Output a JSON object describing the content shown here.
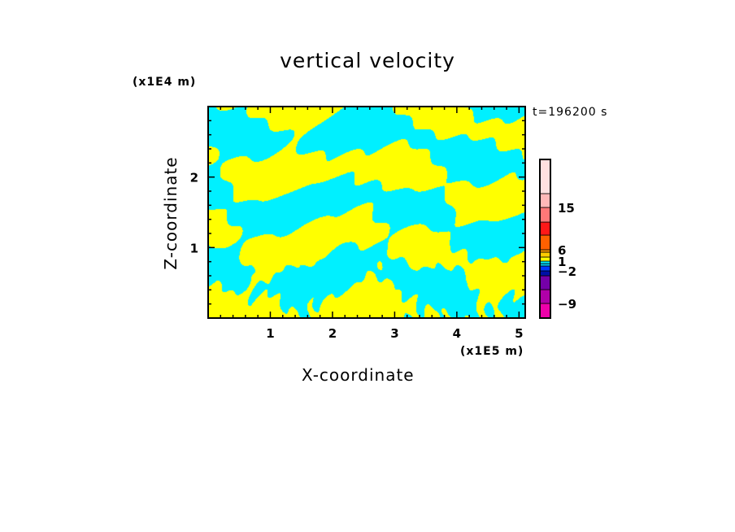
{
  "chart_data": {
    "type": "heatmap",
    "title": "vertical velocity",
    "xlabel": "X-coordinate",
    "ylabel": "Z-coordinate",
    "x_unit": "(x1E5 m)",
    "y_unit": "(x1E4 m)",
    "annotation": "t=196200 s",
    "xlim": [
      0,
      5.1
    ],
    "ylim": [
      0,
      3.0
    ],
    "xticks": [
      1,
      2,
      3,
      4,
      5
    ],
    "xtick_labels": [
      "1",
      "2",
      "3",
      "4",
      "5"
    ],
    "yticks": [
      1,
      2
    ],
    "ytick_labels": [
      "1",
      "2"
    ],
    "grid": false,
    "colorbar": {
      "levels": [
        -12,
        -9,
        -6,
        -3,
        -2,
        -1,
        0,
        1,
        2,
        3,
        6,
        9,
        12,
        15,
        20
      ],
      "colors": [
        "#ee00aa",
        "#b000a8",
        "#7400a8",
        "#0010a8",
        "#0038ff",
        "#00c8f0",
        "#00f0ff",
        "#ffff00",
        "#ffcc00",
        "#ff9900",
        "#ff6000",
        "#ff1818",
        "#ff7878",
        "#ffb8b8",
        "#ffe0e0"
      ],
      "tick_values": [
        -9,
        -2,
        1,
        6,
        15
      ],
      "tick_labels": [
        "-9",
        "-2",
        "1",
        "6",
        "15"
      ]
    },
    "dominant_colors": {
      "positive": "#ffff00",
      "negative": "#00f0ff"
    }
  }
}
